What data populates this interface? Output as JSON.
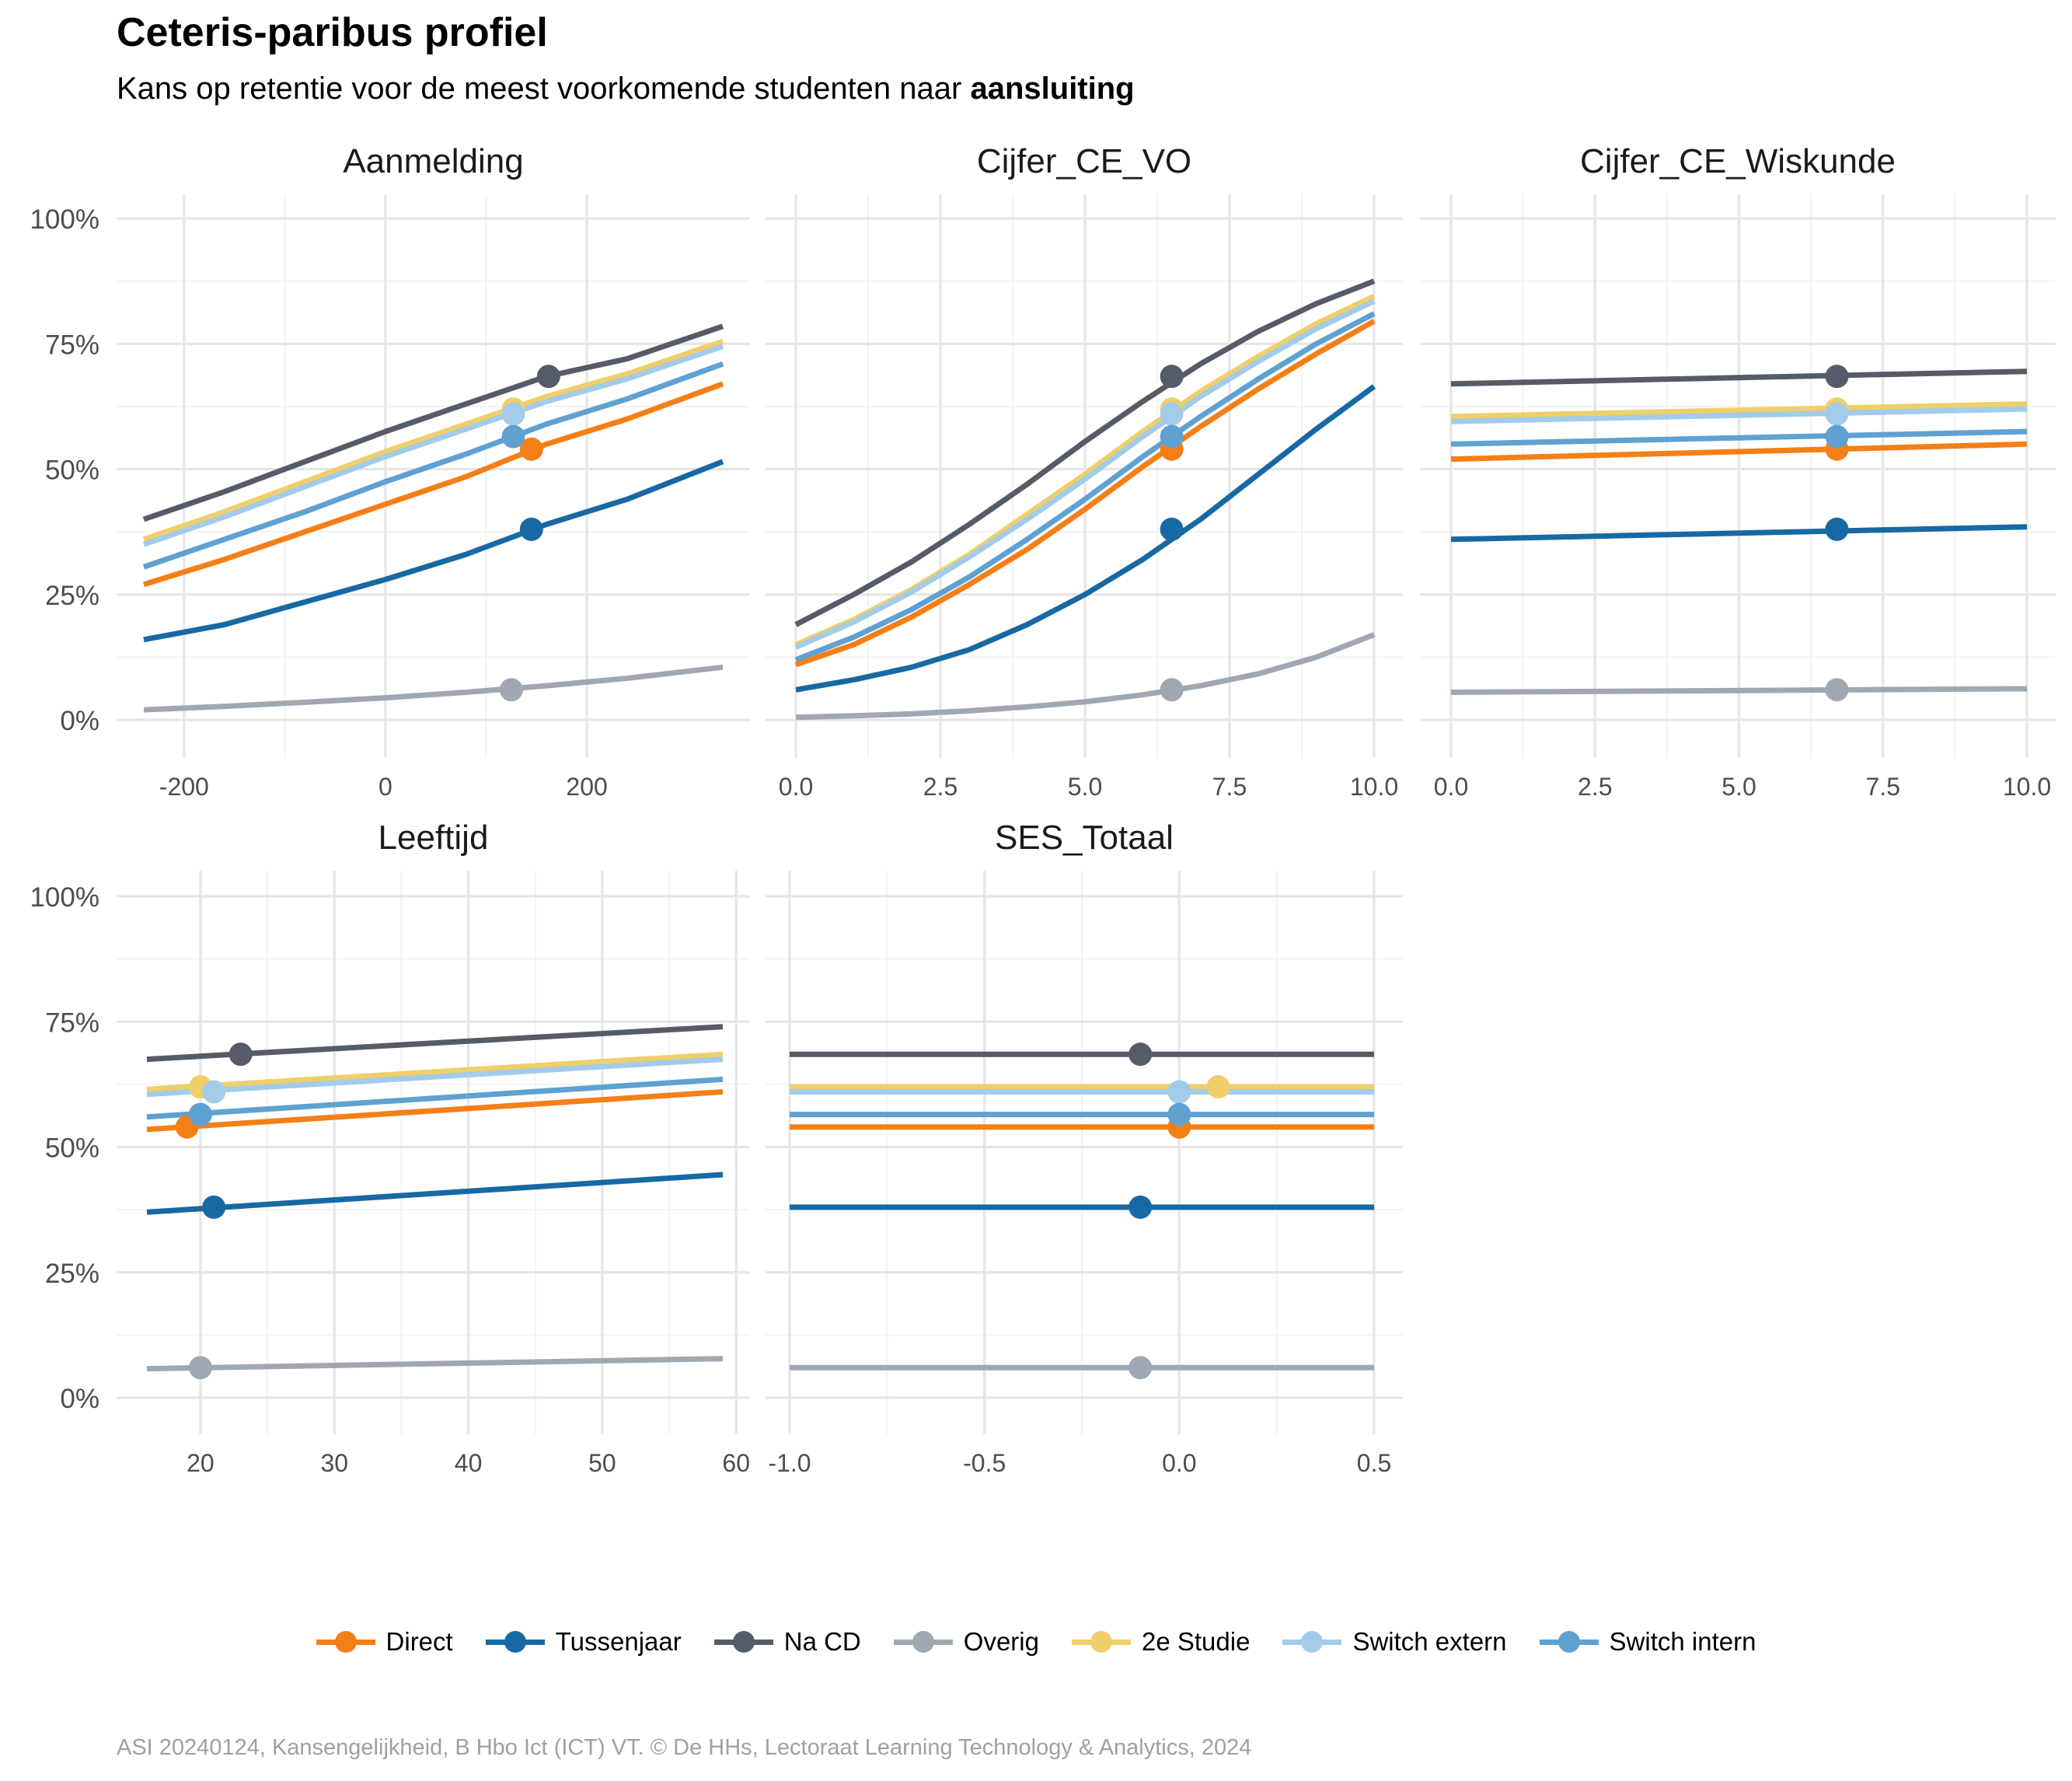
{
  "title": "Ceteris-paribus profiel",
  "subtitle_prefix": "Kans op retentie voor de meest voorkomende studenten naar ",
  "subtitle_bold": "aansluiting",
  "caption": "ASI 20240124, Kansengelijkheid, B Hbo Ict (ICT) VT. © De HHs, Lectoraat Learning Technology & Analytics, 2024",
  "chart_data": {
    "type": "line",
    "ylim": [
      0,
      1
    ],
    "y_ticks": [
      0,
      0.25,
      0.5,
      0.75,
      1
    ],
    "y_tick_labels": [
      "0%",
      "25%",
      "50%",
      "75%",
      "100%"
    ],
    "grid": true,
    "legend_position": "bottom",
    "legend": [
      {
        "name": "Direct",
        "color": "#F57F17"
      },
      {
        "name": "Tussenjaar",
        "color": "#1769A3"
      },
      {
        "name": "Na CD",
        "color": "#555C67"
      },
      {
        "name": "Overig",
        "color": "#9FA8B2"
      },
      {
        "name": "2e Studie",
        "color": "#F0CF6A"
      },
      {
        "name": "Switch extern",
        "color": "#A2CCE9"
      },
      {
        "name": "Switch intern",
        "color": "#5FA1D1"
      }
    ],
    "panels": [
      {
        "title": "Aanmelding",
        "xlim": [
          -240,
          335
        ],
        "x_ticks": [
          -200,
          0,
          200
        ],
        "x_tick_labels": [
          "-200",
          "0",
          "200"
        ],
        "x": [
          -240,
          -160,
          -80,
          0,
          80,
          160,
          240,
          335
        ],
        "series": [
          {
            "name": "Direct",
            "values": [
              0.27,
              0.32,
              0.375,
              0.43,
              0.485,
              0.55,
              0.6,
              0.67
            ],
            "point": [
              145,
              0.54
            ]
          },
          {
            "name": "Tussenjaar",
            "values": [
              0.16,
              0.19,
              0.235,
              0.28,
              0.33,
              0.39,
              0.44,
              0.515
            ],
            "point": [
              145,
              0.38
            ]
          },
          {
            "name": "Na CD",
            "values": [
              0.4,
              0.455,
              0.515,
              0.575,
              0.63,
              0.685,
              0.72,
              0.785
            ],
            "point": [
              162,
              0.685
            ]
          },
          {
            "name": "Overig",
            "values": [
              0.02,
              0.027,
              0.035,
              0.044,
              0.055,
              0.068,
              0.083,
              0.105
            ],
            "point": [
              125,
              0.06
            ]
          },
          {
            "name": "2e Studie",
            "values": [
              0.36,
              0.415,
              0.475,
              0.535,
              0.59,
              0.645,
              0.69,
              0.755
            ],
            "point": [
              127,
              0.62
            ]
          },
          {
            "name": "Switch extern",
            "values": [
              0.35,
              0.405,
              0.465,
              0.525,
              0.58,
              0.635,
              0.68,
              0.745
            ],
            "point": [
              127,
              0.61
            ]
          },
          {
            "name": "Switch intern",
            "values": [
              0.305,
              0.36,
              0.415,
              0.475,
              0.53,
              0.59,
              0.64,
              0.71
            ],
            "point": [
              127,
              0.565
            ]
          }
        ]
      },
      {
        "title": "Cijfer_CE_VO",
        "xlim": [
          0,
          10
        ],
        "x_ticks": [
          0,
          2.5,
          5,
          7.5,
          10
        ],
        "x_tick_labels": [
          "0.0",
          "2.5",
          "5.0",
          "7.5",
          "10.0"
        ],
        "x": [
          0,
          1,
          2,
          3,
          4,
          5,
          6,
          7,
          8,
          9,
          10
        ],
        "series": [
          {
            "name": "Direct",
            "values": [
              0.11,
              0.15,
              0.205,
              0.27,
              0.34,
              0.42,
              0.505,
              0.585,
              0.66,
              0.73,
              0.795
            ],
            "point": [
              6.5,
              0.54
            ]
          },
          {
            "name": "Tussenjaar",
            "values": [
              0.06,
              0.08,
              0.105,
              0.14,
              0.19,
              0.25,
              0.32,
              0.4,
              0.49,
              0.58,
              0.665
            ],
            "point": [
              6.5,
              0.38
            ]
          },
          {
            "name": "Na CD",
            "values": [
              0.19,
              0.25,
              0.315,
              0.39,
              0.47,
              0.555,
              0.635,
              0.71,
              0.775,
              0.83,
              0.875
            ],
            "point": [
              6.5,
              0.685
            ]
          },
          {
            "name": "Overig",
            "values": [
              0.005,
              0.008,
              0.012,
              0.018,
              0.026,
              0.036,
              0.05,
              0.068,
              0.092,
              0.125,
              0.17
            ],
            "point": [
              6.5,
              0.06
            ]
          },
          {
            "name": "2e Studie",
            "values": [
              0.15,
              0.2,
              0.26,
              0.33,
              0.41,
              0.49,
              0.575,
              0.655,
              0.725,
              0.79,
              0.845
            ],
            "point": [
              6.5,
              0.62
            ]
          },
          {
            "name": "Switch extern",
            "values": [
              0.145,
              0.195,
              0.255,
              0.325,
              0.4,
              0.48,
              0.565,
              0.645,
              0.715,
              0.78,
              0.835
            ],
            "point": [
              6.5,
              0.61
            ]
          },
          {
            "name": "Switch intern",
            "values": [
              0.12,
              0.165,
              0.22,
              0.285,
              0.36,
              0.44,
              0.525,
              0.605,
              0.68,
              0.75,
              0.81
            ],
            "point": [
              6.5,
              0.565
            ]
          }
        ]
      },
      {
        "title": "Cijfer_CE_Wiskunde",
        "xlim": [
          0,
          10
        ],
        "x_ticks": [
          0,
          2.5,
          5,
          7.5,
          10
        ],
        "x_tick_labels": [
          "0.0",
          "2.5",
          "5.0",
          "7.5",
          "10.0"
        ],
        "x": [
          0,
          10
        ],
        "series": [
          {
            "name": "Direct",
            "values": [
              0.52,
              0.55
            ],
            "point": [
              6.7,
              0.54
            ]
          },
          {
            "name": "Tussenjaar",
            "values": [
              0.36,
              0.385
            ],
            "point": [
              6.7,
              0.38
            ]
          },
          {
            "name": "Na CD",
            "values": [
              0.67,
              0.695
            ],
            "point": [
              6.7,
              0.685
            ]
          },
          {
            "name": "Overig",
            "values": [
              0.055,
              0.062
            ],
            "point": [
              6.7,
              0.06
            ]
          },
          {
            "name": "2e Studie",
            "values": [
              0.605,
              0.63
            ],
            "point": [
              6.7,
              0.62
            ]
          },
          {
            "name": "Switch extern",
            "values": [
              0.595,
              0.62
            ],
            "point": [
              6.7,
              0.61
            ]
          },
          {
            "name": "Switch intern",
            "values": [
              0.55,
              0.575
            ],
            "point": [
              6.7,
              0.565
            ]
          }
        ]
      },
      {
        "title": "Leeftijd",
        "xlim": [
          16,
          59
        ],
        "x_ticks": [
          20,
          30,
          40,
          50,
          60
        ],
        "x_tick_labels": [
          "20",
          "30",
          "40",
          "50",
          "60"
        ],
        "x": [
          16,
          59
        ],
        "series": [
          {
            "name": "Direct",
            "values": [
              0.535,
              0.61
            ],
            "point": [
              19,
              0.54
            ]
          },
          {
            "name": "Tussenjaar",
            "values": [
              0.37,
              0.445
            ],
            "point": [
              21,
              0.38
            ]
          },
          {
            "name": "Na CD",
            "values": [
              0.675,
              0.74
            ],
            "point": [
              23,
              0.685
            ]
          },
          {
            "name": "Overig",
            "values": [
              0.058,
              0.078
            ],
            "point": [
              20,
              0.06
            ]
          },
          {
            "name": "2e Studie",
            "values": [
              0.615,
              0.685
            ],
            "point": [
              20,
              0.62
            ]
          },
          {
            "name": "Switch extern",
            "values": [
              0.605,
              0.675
            ],
            "point": [
              21,
              0.61
            ]
          },
          {
            "name": "Switch intern",
            "values": [
              0.56,
              0.635
            ],
            "point": [
              20,
              0.565
            ]
          }
        ]
      },
      {
        "title": "SES_Totaal",
        "xlim": [
          -1.0,
          0.5
        ],
        "x_ticks": [
          -1.0,
          -0.5,
          0.0,
          0.5
        ],
        "x_tick_labels": [
          "-1.0",
          "-0.5",
          "0.0",
          "0.5"
        ],
        "x": [
          -1.0,
          0.5
        ],
        "series": [
          {
            "name": "Direct",
            "values": [
              0.54,
              0.54
            ],
            "point": [
              0.0,
              0.54
            ]
          },
          {
            "name": "Tussenjaar",
            "values": [
              0.38,
              0.38
            ],
            "point": [
              -0.1,
              0.38
            ]
          },
          {
            "name": "Na CD",
            "values": [
              0.685,
              0.685
            ],
            "point": [
              -0.1,
              0.685
            ]
          },
          {
            "name": "Overig",
            "values": [
              0.06,
              0.06
            ],
            "point": [
              -0.1,
              0.06
            ]
          },
          {
            "name": "2e Studie",
            "values": [
              0.62,
              0.62
            ],
            "point": [
              0.1,
              0.62
            ]
          },
          {
            "name": "Switch extern",
            "values": [
              0.61,
              0.61
            ],
            "point": [
              0.0,
              0.61
            ]
          },
          {
            "name": "Switch intern",
            "values": [
              0.565,
              0.565
            ],
            "point": [
              0.0,
              0.565
            ]
          }
        ]
      }
    ]
  }
}
